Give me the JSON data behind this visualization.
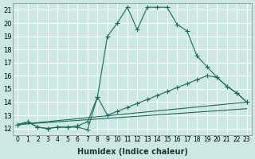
{
  "title": "",
  "xlabel": "Humidex (Indice chaleur)",
  "ylabel": "",
  "bg_color": "#cce8e4",
  "grid_color": "#ffffff",
  "line_color": "#1a6b5a",
  "xlim": [
    -0.5,
    23.5
  ],
  "ylim": [
    11.5,
    21.5
  ],
  "xticks": [
    0,
    1,
    2,
    3,
    4,
    5,
    6,
    7,
    8,
    9,
    10,
    11,
    12,
    13,
    14,
    15,
    16,
    17,
    18,
    19,
    20,
    21,
    22,
    23
  ],
  "yticks": [
    12,
    13,
    14,
    15,
    16,
    17,
    18,
    19,
    20,
    21
  ],
  "series": [
    {
      "x": [
        0,
        1,
        2,
        3,
        4,
        5,
        6,
        7,
        8,
        9,
        10,
        11,
        12,
        13,
        14,
        15,
        16,
        17,
        18,
        19,
        20,
        21,
        22,
        23
      ],
      "y": [
        12.3,
        12.5,
        12.1,
        12.0,
        12.1,
        12.1,
        12.1,
        11.9,
        14.4,
        19.0,
        20.0,
        21.2,
        19.5,
        21.2,
        21.2,
        21.2,
        19.9,
        19.4,
        17.5,
        16.7,
        15.9,
        15.2,
        14.7,
        14.0
      ],
      "has_markers": true
    },
    {
      "x": [
        0,
        1,
        2,
        3,
        4,
        5,
        6,
        7,
        8,
        9,
        10,
        11,
        12,
        13,
        14,
        15,
        16,
        17,
        18,
        19,
        20,
        21,
        22,
        23
      ],
      "y": [
        12.3,
        12.5,
        12.1,
        12.0,
        12.1,
        12.1,
        12.2,
        12.5,
        14.4,
        13.0,
        13.3,
        13.6,
        13.9,
        14.2,
        14.5,
        14.8,
        15.1,
        15.4,
        15.7,
        16.0,
        15.9,
        15.2,
        14.7,
        14.0
      ],
      "has_markers": true
    },
    {
      "x": [
        0,
        23
      ],
      "y": [
        12.3,
        13.5
      ],
      "has_markers": false
    },
    {
      "x": [
        0,
        23
      ],
      "y": [
        12.3,
        14.0
      ],
      "has_markers": false
    }
  ]
}
